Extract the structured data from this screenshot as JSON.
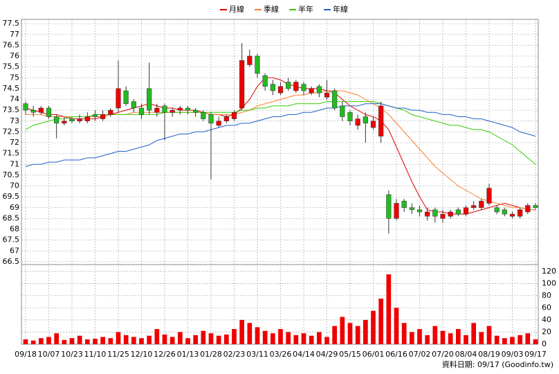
{
  "chart_data": {
    "type": "candlestick",
    "categories": [
      "09/18",
      null,
      null,
      "10/07",
      null,
      null,
      "10/23",
      null,
      null,
      "11/10",
      null,
      null,
      "11/25",
      null,
      null,
      "12/10",
      null,
      null,
      "12/26",
      null,
      null,
      "01/13",
      null,
      null,
      "01/28",
      null,
      null,
      "02/23",
      null,
      null,
      "03/11",
      null,
      null,
      "03/26",
      null,
      null,
      "04/14",
      null,
      null,
      "04/29",
      null,
      null,
      "05/15",
      null,
      null,
      "06/01",
      null,
      null,
      "06/16",
      null,
      null,
      "07/02",
      null,
      null,
      "07/20",
      null,
      null,
      "08/04",
      null,
      null,
      "08/19",
      null,
      null,
      "09/03",
      null,
      null,
      "09/17"
    ],
    "open": [
      73.8,
      73.5,
      73.4,
      73.6,
      73.2,
      72.9,
      73.1,
      73.0,
      73.0,
      73.3,
      73.1,
      73.3,
      73.6,
      74.4,
      73.9,
      73.6,
      74.5,
      73.4,
      73.7,
      73.4,
      73.5,
      73.6,
      73.5,
      73.4,
      73.3,
      72.8,
      73.0,
      73.1,
      73.6,
      75.6,
      76.0,
      75.1,
      74.7,
      74.3,
      74.8,
      74.4,
      74.7,
      74.3,
      74.6,
      74.1,
      74.4,
      73.7,
      73.4,
      72.8,
      73.2,
      72.7,
      72.3,
      69.6,
      68.5,
      69.3,
      69.0,
      68.9,
      68.6,
      68.9,
      68.5,
      68.6,
      68.9,
      68.7,
      69.0,
      69.0,
      69.2,
      69.0,
      68.9,
      68.6,
      68.6,
      68.8,
      69.1
    ],
    "high": [
      73.9,
      73.7,
      73.7,
      73.7,
      73.3,
      73.2,
      73.2,
      73.3,
      73.4,
      73.5,
      73.5,
      73.6,
      75.8,
      74.6,
      74.0,
      73.8,
      75.7,
      73.8,
      73.8,
      73.6,
      73.7,
      73.7,
      73.6,
      73.5,
      73.4,
      73.2,
      73.3,
      73.5,
      76.6,
      76.3,
      76.1,
      75.2,
      74.9,
      74.8,
      75.0,
      74.9,
      74.8,
      74.6,
      74.7,
      74.9,
      74.5,
      73.9,
      73.5,
      73.3,
      73.4,
      73.2,
      73.9,
      69.8,
      69.4,
      69.4,
      69.2,
      69.1,
      69.0,
      69.0,
      68.9,
      68.9,
      69.0,
      69.1,
      69.3,
      69.4,
      70.1,
      69.1,
      69.0,
      68.8,
      69.0,
      69.2,
      69.2
    ],
    "low": [
      73.3,
      73.2,
      73.3,
      73.1,
      72.2,
      72.8,
      72.9,
      72.9,
      72.9,
      73.0,
      73.0,
      73.2,
      73.4,
      73.7,
      73.4,
      73.1,
      73.3,
      73.2,
      72.1,
      73.2,
      73.3,
      73.3,
      73.2,
      73.0,
      70.3,
      72.7,
      72.9,
      73.0,
      73.5,
      75.5,
      75.0,
      74.4,
      74.2,
      74.2,
      74.4,
      74.3,
      74.2,
      74.2,
      74.1,
      74.0,
      73.5,
      73.0,
      72.8,
      72.6,
      72.0,
      72.6,
      72.0,
      67.8,
      68.4,
      68.8,
      68.7,
      68.6,
      68.4,
      68.3,
      68.3,
      68.5,
      68.6,
      68.6,
      68.9,
      68.9,
      69.1,
      68.7,
      68.6,
      68.5,
      68.5,
      68.7,
      68.9
    ],
    "close": [
      73.5,
      73.4,
      73.6,
      73.2,
      72.9,
      73.0,
      73.0,
      73.1,
      73.2,
      73.2,
      73.3,
      73.5,
      74.5,
      73.8,
      73.6,
      73.3,
      73.5,
      73.6,
      73.4,
      73.5,
      73.6,
      73.5,
      73.4,
      73.1,
      72.9,
      73.0,
      73.2,
      73.4,
      75.8,
      76.0,
      75.2,
      74.6,
      74.4,
      74.6,
      74.5,
      74.8,
      74.4,
      74.5,
      74.3,
      74.3,
      73.6,
      73.2,
      73.0,
      73.1,
      72.9,
      73.0,
      73.7,
      68.5,
      69.2,
      69.0,
      68.9,
      68.8,
      68.8,
      68.6,
      68.7,
      68.8,
      68.7,
      69.0,
      69.1,
      69.3,
      69.9,
      68.8,
      68.7,
      68.7,
      68.9,
      69.1,
      69.0
    ],
    "up_color": "#ee0000",
    "down_color": "#22bb22",
    "series": [
      {
        "name": "月線",
        "color": "#dd0000",
        "values": [
          73.6,
          73.5,
          73.4,
          73.3,
          73.3,
          73.2,
          73.1,
          73.1,
          73.1,
          73.1,
          73.2,
          73.3,
          73.4,
          73.5,
          73.6,
          73.7,
          73.8,
          73.7,
          73.6,
          73.6,
          73.5,
          73.5,
          73.5,
          73.4,
          73.3,
          73.3,
          73.2,
          73.3,
          73.6,
          74.0,
          74.6,
          75.0,
          75.0,
          74.9,
          74.7,
          74.6,
          74.5,
          74.5,
          74.5,
          74.4,
          74.3,
          74.0,
          73.7,
          73.5,
          73.3,
          73.2,
          73.0,
          72.6,
          71.8,
          71.0,
          70.2,
          69.5,
          68.9,
          68.8,
          68.8,
          68.7,
          68.7,
          68.7,
          68.8,
          68.9,
          69.0,
          69.1,
          69.2,
          69.1,
          69.0,
          68.9,
          68.9
        ]
      },
      {
        "name": "季線",
        "color": "#ff7f27",
        "values": [
          73.3,
          73.3,
          73.3,
          73.2,
          73.2,
          73.2,
          73.2,
          73.2,
          73.2,
          73.2,
          73.2,
          73.3,
          73.3,
          73.3,
          73.4,
          73.4,
          73.4,
          73.4,
          73.4,
          73.4,
          73.4,
          73.4,
          73.4,
          73.4,
          73.3,
          73.3,
          73.3,
          73.3,
          73.4,
          73.5,
          73.7,
          73.8,
          73.9,
          74.0,
          74.1,
          74.2,
          74.2,
          74.3,
          74.3,
          74.4,
          74.4,
          74.4,
          74.3,
          74.2,
          74.0,
          73.8,
          73.6,
          73.3,
          72.9,
          72.5,
          72.1,
          71.7,
          71.3,
          70.9,
          70.6,
          70.3,
          70.0,
          69.8,
          69.6,
          69.4,
          69.3,
          69.2,
          69.1,
          69.0,
          69.0,
          68.9,
          68.9
        ]
      },
      {
        "name": "半年",
        "color": "#33cc00",
        "values": [
          72.6,
          72.8,
          72.9,
          73.0,
          73.1,
          73.1,
          73.2,
          73.2,
          73.2,
          73.3,
          73.3,
          73.3,
          73.3,
          73.3,
          73.3,
          73.3,
          73.3,
          73.3,
          73.4,
          73.4,
          73.4,
          73.4,
          73.4,
          73.4,
          73.4,
          73.4,
          73.4,
          73.4,
          73.5,
          73.5,
          73.6,
          73.6,
          73.7,
          73.7,
          73.7,
          73.8,
          73.8,
          73.8,
          73.8,
          73.9,
          73.9,
          73.9,
          73.9,
          73.9,
          73.9,
          73.9,
          73.8,
          73.7,
          73.6,
          73.5,
          73.3,
          73.2,
          73.1,
          73.0,
          72.9,
          72.8,
          72.8,
          72.7,
          72.6,
          72.6,
          72.5,
          72.3,
          72.1,
          71.9,
          71.6,
          71.3,
          71.0
        ]
      },
      {
        "name": "年線",
        "color": "#1f5fcc",
        "values": [
          70.9,
          71.0,
          71.0,
          71.1,
          71.1,
          71.2,
          71.2,
          71.2,
          71.3,
          71.3,
          71.4,
          71.5,
          71.6,
          71.6,
          71.7,
          71.8,
          71.9,
          72.1,
          72.2,
          72.3,
          72.4,
          72.4,
          72.5,
          72.5,
          72.6,
          72.7,
          72.8,
          72.8,
          72.9,
          72.9,
          73.0,
          73.1,
          73.2,
          73.2,
          73.3,
          73.3,
          73.4,
          73.4,
          73.5,
          73.6,
          73.6,
          73.7,
          73.7,
          73.7,
          73.8,
          73.8,
          73.8,
          73.7,
          73.6,
          73.6,
          73.5,
          73.5,
          73.4,
          73.4,
          73.3,
          73.3,
          73.2,
          73.2,
          73.1,
          73.1,
          73.0,
          72.9,
          72.8,
          72.7,
          72.5,
          72.4,
          72.3
        ]
      }
    ],
    "ylim": [
      66.4,
      77.6
    ],
    "yticks": [
      66.5,
      67,
      67.5,
      68,
      68.5,
      69,
      69.5,
      70,
      70.5,
      71,
      71.5,
      72,
      72.5,
      73,
      73.5,
      74,
      74.5,
      75,
      75.5,
      76,
      76.5,
      77,
      77.5
    ],
    "volume": {
      "color": "#ee0000",
      "ylim": [
        0,
        130
      ],
      "yticks": [
        0,
        20,
        40,
        60,
        80,
        100,
        120
      ],
      "values": [
        8,
        6,
        10,
        12,
        18,
        7,
        10,
        14,
        8,
        9,
        12,
        10,
        20,
        15,
        12,
        10,
        14,
        25,
        16,
        12,
        20,
        10,
        15,
        22,
        18,
        14,
        16,
        25,
        40,
        35,
        28,
        22,
        18,
        25,
        20,
        15,
        18,
        14,
        20,
        12,
        30,
        45,
        35,
        30,
        40,
        55,
        75,
        115,
        60,
        35,
        20,
        25,
        15,
        30,
        22,
        18,
        25,
        15,
        35,
        20,
        30,
        14,
        10,
        12,
        15,
        18,
        8
      ]
    },
    "grid": true,
    "source": "資料日期: 09/17 (Goodinfo.tw)"
  }
}
